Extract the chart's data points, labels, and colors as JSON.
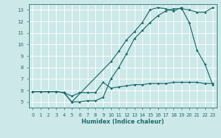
{
  "background_color": "#cde8e8",
  "grid_color": "#ffffff",
  "line_color": "#1a6b6b",
  "xlabel": "Humidex (Indice chaleur)",
  "xlim": [
    -0.5,
    23.5
  ],
  "ylim": [
    4.5,
    13.5
  ],
  "xticks": [
    0,
    1,
    2,
    3,
    4,
    5,
    6,
    7,
    8,
    9,
    10,
    11,
    12,
    13,
    14,
    15,
    16,
    17,
    18,
    19,
    20,
    21,
    22,
    23
  ],
  "yticks": [
    5,
    6,
    7,
    8,
    9,
    10,
    11,
    12,
    13
  ],
  "line1_x": [
    0,
    1,
    2,
    3,
    4,
    5,
    6,
    7,
    8,
    9,
    10,
    11,
    12,
    13,
    14,
    15,
    16,
    17,
    18,
    19,
    20,
    21,
    22,
    23
  ],
  "line1_y": [
    5.9,
    5.9,
    5.9,
    5.9,
    5.8,
    5.5,
    5.8,
    5.8,
    5.8,
    6.7,
    6.2,
    6.3,
    6.4,
    6.5,
    6.5,
    6.6,
    6.6,
    6.6,
    6.7,
    6.7,
    6.7,
    6.7,
    6.6,
    6.6
  ],
  "line2_x": [
    0,
    1,
    2,
    3,
    4,
    5,
    6,
    7,
    8,
    9,
    10,
    11,
    12,
    13,
    14,
    15,
    16,
    17,
    18,
    19,
    20,
    21,
    22,
    23
  ],
  "line2_y": [
    5.9,
    5.9,
    5.9,
    5.9,
    5.8,
    5.0,
    5.0,
    5.1,
    5.1,
    5.4,
    7.0,
    8.0,
    9.2,
    10.5,
    11.2,
    11.9,
    12.5,
    12.9,
    13.1,
    13.1,
    13.0,
    12.8,
    12.8,
    13.2
  ],
  "line3_x": [
    0,
    3,
    4,
    5,
    10,
    11,
    12,
    13,
    14,
    15,
    16,
    17,
    18,
    19,
    20,
    21,
    22,
    23
  ],
  "line3_y": [
    5.9,
    5.9,
    5.8,
    5.0,
    8.5,
    9.4,
    10.4,
    11.1,
    11.9,
    13.0,
    13.2,
    13.1,
    12.9,
    13.2,
    11.9,
    9.5,
    8.3,
    6.5
  ],
  "marker": "D",
  "markersize": 2.0,
  "linewidth": 0.9,
  "tick_fontsize": 5.0,
  "xlabel_fontsize": 6.0
}
